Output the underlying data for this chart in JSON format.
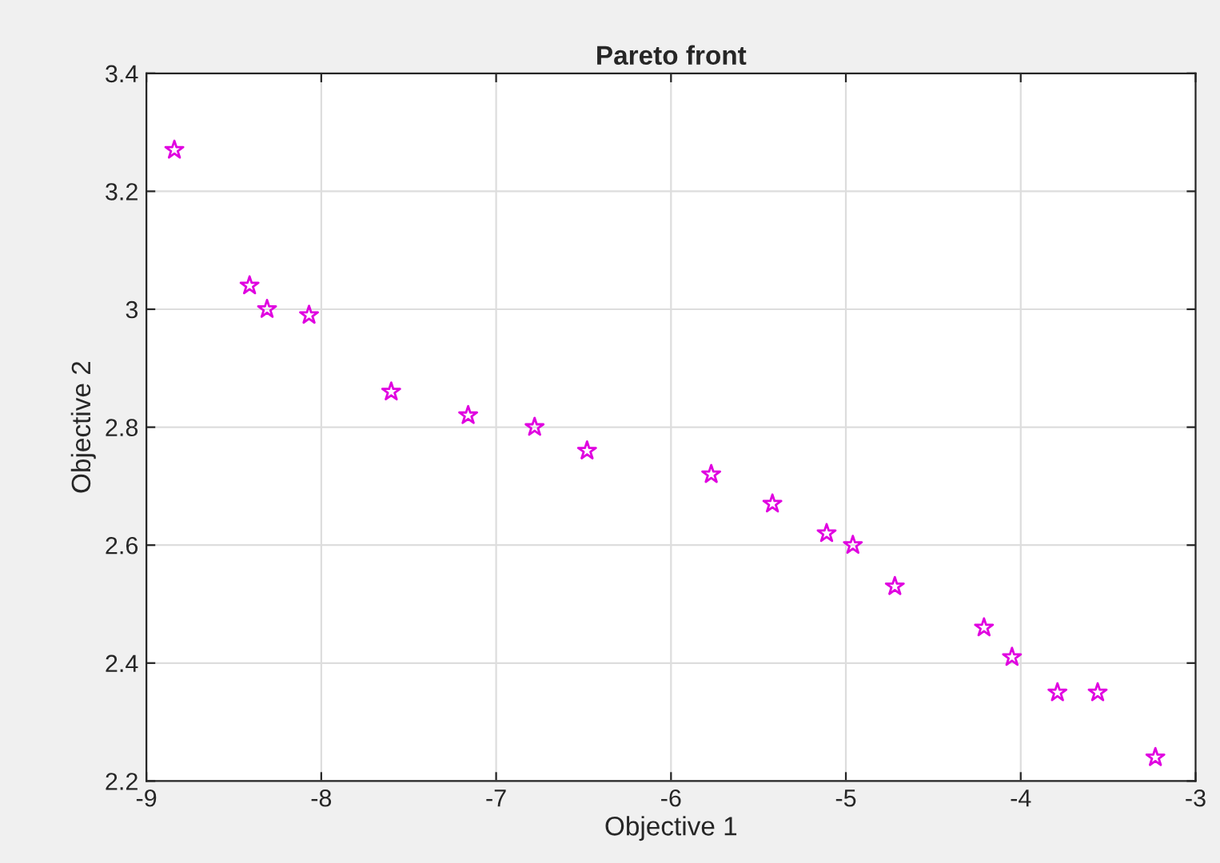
{
  "chart_data": {
    "type": "scatter",
    "title": "Pareto front",
    "xlabel": "Objective 1",
    "ylabel": "Objective 2",
    "x": [
      -8.84,
      -8.41,
      -8.31,
      -8.07,
      -7.6,
      -7.16,
      -6.78,
      -6.48,
      -5.77,
      -5.42,
      -5.11,
      -4.96,
      -4.72,
      -4.21,
      -4.05,
      -3.79,
      -3.56,
      -3.23
    ],
    "series": [
      {
        "color": "#e000e0",
        "values": [
          3.27,
          3.04,
          3.0,
          2.99,
          2.86,
          2.82,
          2.8,
          2.76,
          2.72,
          2.67,
          2.62,
          2.6,
          2.53,
          2.46,
          2.41,
          2.35,
          2.35,
          2.24
        ]
      }
    ],
    "xlim": [
      -9,
      -3
    ],
    "ylim": [
      2.2,
      3.4
    ],
    "xticks": [
      -9,
      -8,
      -7,
      -6,
      -5,
      -4,
      -3
    ],
    "yticks": [
      2.2,
      2.4,
      2.6,
      2.8,
      3,
      3.2,
      3.4
    ],
    "grid": true,
    "marker": "star"
  }
}
